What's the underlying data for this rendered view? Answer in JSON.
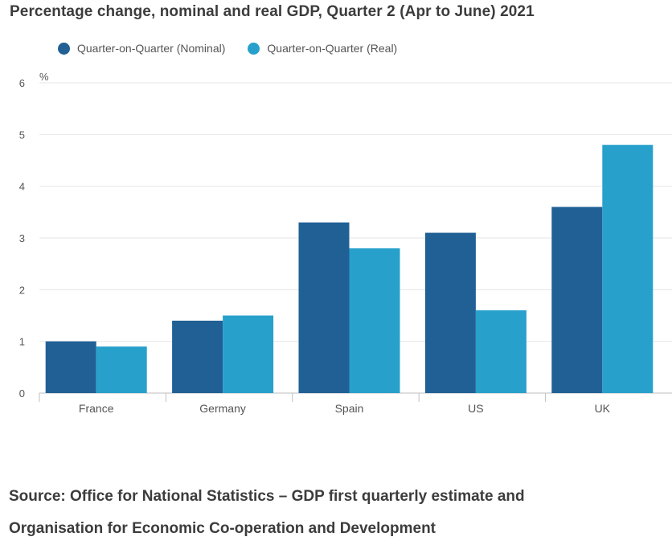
{
  "title": "Percentage change, nominal and real GDP, Quarter 2 (Apr to June) 2021",
  "source": {
    "line1": "Source: Office for National Statistics – GDP first quarterly estimate and",
    "line2": "Organisation for Economic Co-operation and Development"
  },
  "colors": {
    "nominal": "#206095",
    "real": "#27a0cc",
    "grid": "#e6e6e6",
    "axis": "#bfbfbf",
    "text": "#555555"
  },
  "chart_data": {
    "type": "bar",
    "title": "Percentage change, nominal and real GDP, Quarter 2 (Apr to June) 2021",
    "ylabel": "%",
    "xlabel": "",
    "ylim": [
      0,
      6
    ],
    "yticks": [
      0,
      1,
      2,
      3,
      4,
      5,
      6
    ],
    "grid": true,
    "legend_position": "top-left",
    "categories": [
      "France",
      "Germany",
      "Spain",
      "US",
      "UK"
    ],
    "series": [
      {
        "name": "Quarter-on-Quarter (Nominal)",
        "color": "#206095",
        "values": [
          1.0,
          1.4,
          3.3,
          3.1,
          3.6
        ]
      },
      {
        "name": "Quarter-on-Quarter (Real)",
        "color": "#27a0cc",
        "values": [
          0.9,
          1.5,
          2.8,
          1.6,
          4.8
        ]
      }
    ]
  }
}
